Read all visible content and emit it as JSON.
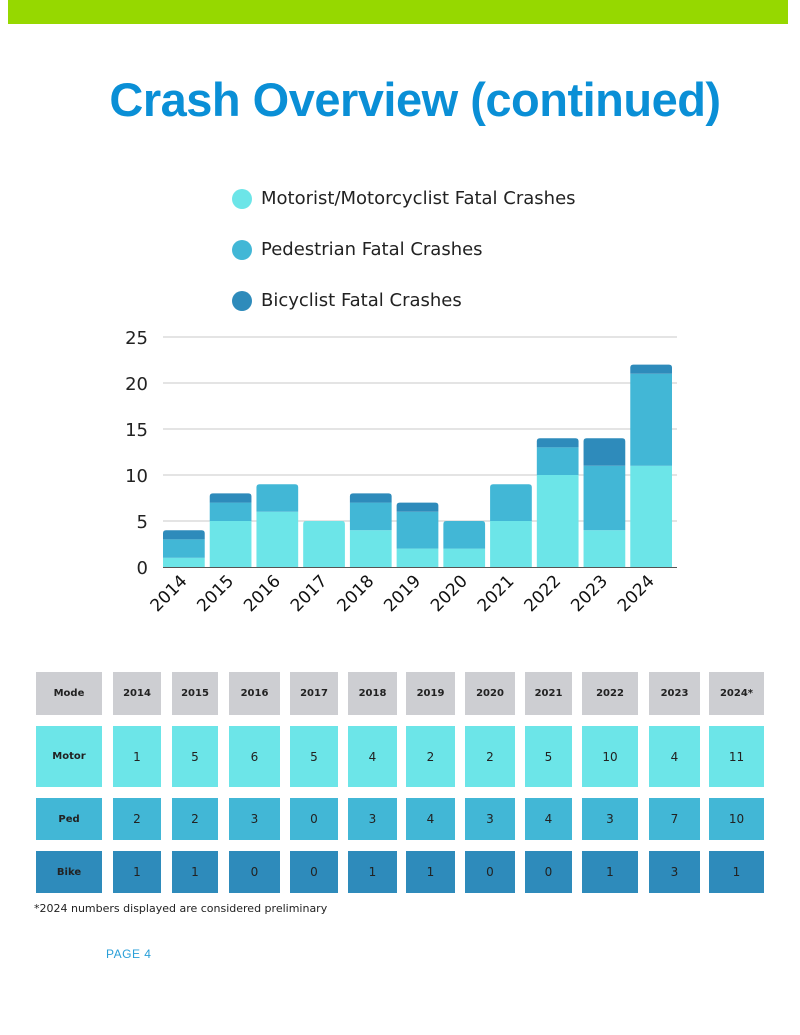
{
  "page": {
    "title": "Crash Overview (continued)",
    "footnote": "*2024 numbers displayed are considered preliminary",
    "page_label": "PAGE 4"
  },
  "colors": {
    "accent_bar": "#96d800",
    "title": "#0a8fd6",
    "motor": "#6ce5e8",
    "ped": "#42b7d6",
    "bike": "#2e8bbb",
    "header_cell": "#cdced2"
  },
  "chart_data": {
    "type": "bar",
    "stacked": true,
    "title": "",
    "xlabel": "",
    "ylabel": "",
    "categories": [
      "2014",
      "2015",
      "2016",
      "2017",
      "2018",
      "2019",
      "2020",
      "2021",
      "2022",
      "2023",
      "2024"
    ],
    "series": [
      {
        "name": "Motorist/Motorcyclist Fatal Crashes",
        "key": "motor",
        "color": "#6ce5e8",
        "values": [
          1,
          5,
          6,
          5,
          4,
          2,
          2,
          5,
          10,
          4,
          11
        ]
      },
      {
        "name": "Pedestrian Fatal Crashes",
        "key": "ped",
        "color": "#42b7d6",
        "values": [
          2,
          2,
          3,
          0,
          3,
          4,
          3,
          4,
          3,
          7,
          10
        ]
      },
      {
        "name": "Bicyclist Fatal Crashes",
        "key": "bike",
        "color": "#2e8bbb",
        "values": [
          1,
          1,
          0,
          0,
          1,
          1,
          0,
          0,
          1,
          3,
          1
        ]
      }
    ],
    "ylim": [
      0,
      25
    ],
    "yticks": [
      "0",
      "5",
      "10",
      "15",
      "20",
      "25"
    ],
    "grid": true,
    "legend_position": "top"
  },
  "table": {
    "headers": [
      "Mode",
      "2014",
      "2015",
      "2016",
      "2017",
      "2018",
      "2019",
      "2020",
      "2021",
      "2022",
      "2023",
      "2024*"
    ],
    "rows": [
      {
        "key": "motor",
        "label": "Motor",
        "values": [
          "1",
          "5",
          "6",
          "5",
          "4",
          "2",
          "2",
          "5",
          "10",
          "4",
          "11"
        ]
      },
      {
        "key": "ped",
        "label": "Ped",
        "values": [
          "2",
          "2",
          "3",
          "0",
          "3",
          "4",
          "3",
          "4",
          "3",
          "7",
          "10"
        ]
      },
      {
        "key": "bike",
        "label": "Bike",
        "values": [
          "1",
          "1",
          "0",
          "0",
          "1",
          "1",
          "0",
          "0",
          "1",
          "3",
          "1"
        ]
      }
    ]
  }
}
